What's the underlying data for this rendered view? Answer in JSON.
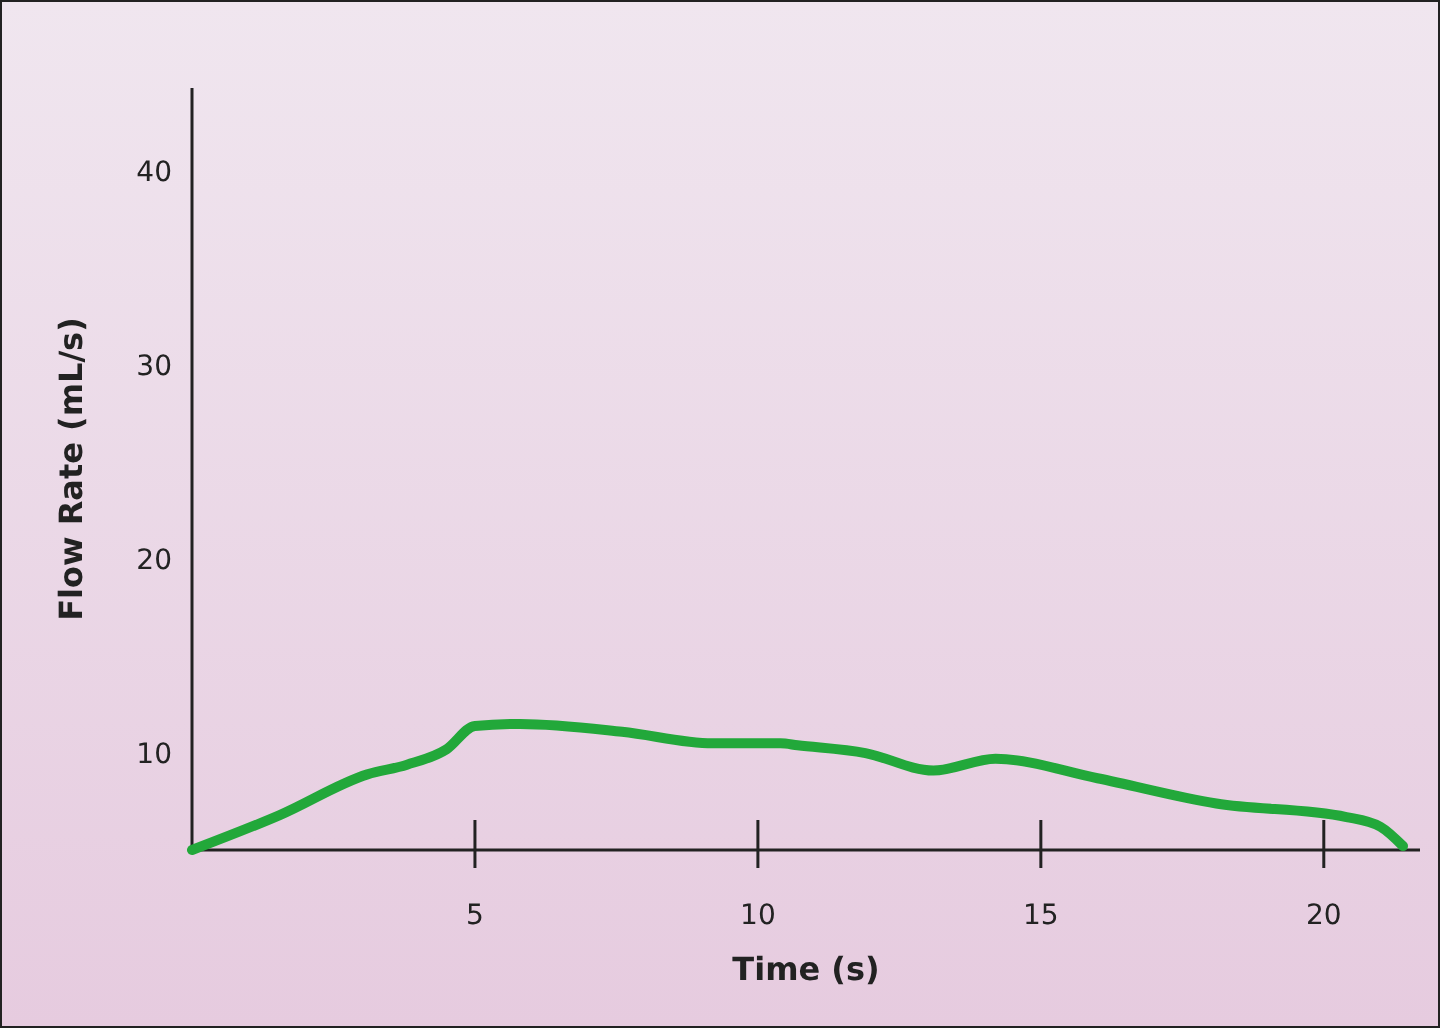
{
  "chart_data": {
    "type": "line",
    "xlabel": "Time (s)",
    "ylabel": "Flow Rate (mL/s)",
    "xlim": [
      0,
      21.7
    ],
    "ylim": [
      5,
      44.3
    ],
    "xticks": [
      5,
      10,
      15,
      20
    ],
    "yticks": [
      10,
      20,
      30,
      40
    ],
    "series": [
      {
        "color": "#22a83a",
        "x": [
          0,
          1.55,
          3.1,
          3.8,
          4.5,
          5.0,
          5.8,
          7.6,
          9.2,
          10.4,
          10.7,
          11.9,
          13.1,
          14.2,
          16.0,
          18.1,
          20.4,
          21.0,
          21.4
        ],
        "values": [
          5.0,
          6.8,
          8.9,
          9.4,
          10.2,
          11.4,
          11.5,
          11.1,
          10.5,
          10.5,
          10.4,
          10.0,
          9.1,
          9.7,
          8.7,
          7.4,
          6.7,
          6.2,
          5.2
        ]
      }
    ],
    "grid": false,
    "marker": "none",
    "line_style": "solid"
  }
}
